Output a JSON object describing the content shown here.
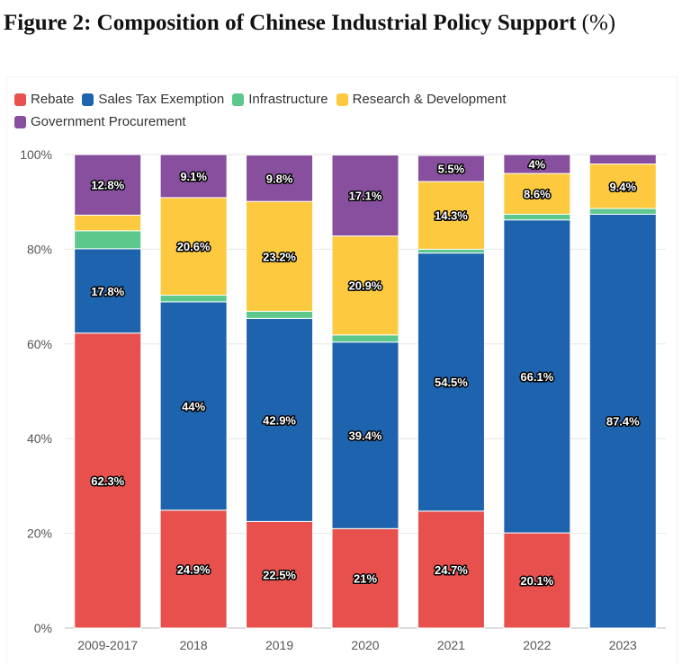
{
  "page": {
    "title": "Figure 2: Composition of Chinese Industrial Policy Support",
    "title_unit": "(%)"
  },
  "chart_data": {
    "type": "bar",
    "stacked": true,
    "title": "Figure 2: Composition of Chinese Industrial Policy Support (%)",
    "xlabel": "",
    "ylabel": "",
    "ylim": [
      0,
      100
    ],
    "yticks": [
      "0%",
      "20%",
      "40%",
      "60%",
      "80%",
      "100%"
    ],
    "grid": true,
    "legend_position": "top-left",
    "categories": [
      "2009-2017",
      "2018",
      "2019",
      "2020",
      "2021",
      "2022",
      "2023"
    ],
    "series": [
      {
        "name": "Rebate",
        "color": "#e8504e",
        "values": [
          62.3,
          24.9,
          22.5,
          21,
          24.7,
          20.1,
          0
        ],
        "labels": [
          "62.3%",
          "24.9%",
          "22.5%",
          "21%",
          "24.7%",
          "20.1%",
          ""
        ]
      },
      {
        "name": "Sales Tax Exemption",
        "color": "#1e63ad",
        "values": [
          17.8,
          44,
          42.9,
          39.4,
          54.5,
          66.1,
          87.4
        ],
        "labels": [
          "17.8%",
          "44%",
          "42.9%",
          "39.4%",
          "54.5%",
          "66.1%",
          "87.4%"
        ]
      },
      {
        "name": "Infrastructure",
        "color": "#5cc88c",
        "values": [
          3.8,
          1.4,
          1.5,
          1.5,
          0.8,
          1.2,
          1.2
        ],
        "labels": [
          "",
          "",
          "",
          "",
          "",
          "",
          ""
        ]
      },
      {
        "name": "Research & Development",
        "color": "#fdc93e",
        "values": [
          3.3,
          20.6,
          23.2,
          20.9,
          14.3,
          8.6,
          9.4
        ],
        "labels": [
          "",
          "20.6%",
          "23.2%",
          "20.9%",
          "14.3%",
          "8.6%",
          "9.4%"
        ]
      },
      {
        "name": "Government Procurement",
        "color": "#874f9e",
        "values": [
          12.8,
          9.1,
          9.8,
          17.1,
          5.5,
          4,
          2
        ],
        "labels": [
          "12.8%",
          "9.1%",
          "9.8%",
          "17.1%",
          "5.5%",
          "4%",
          ""
        ]
      }
    ]
  }
}
